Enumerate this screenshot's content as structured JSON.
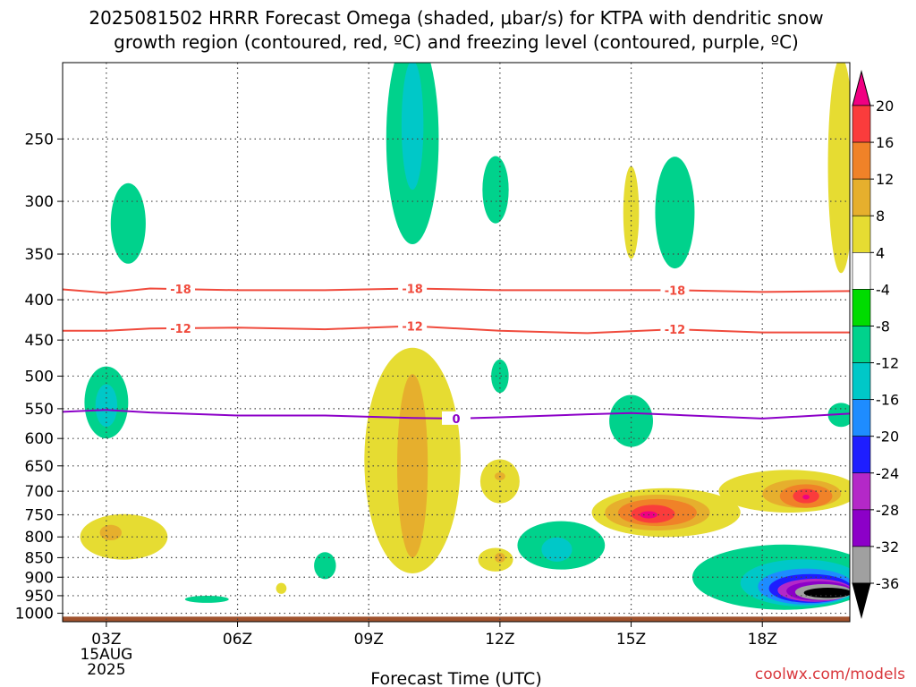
{
  "title_line1": "2025081502 HRRR Forecast Omega (shaded, μbar/s) for KTPA with dendritic snow",
  "title_line2": "growth region (contoured, red, ºC) and freezing level (contoured, purple, ºC)",
  "xlabel": "Forecast Time (UTC)",
  "credit": "coolwx.com/models",
  "chart_data": {
    "type": "heatmap",
    "x_ticks": [
      {
        "hour": 3,
        "label": "03Z",
        "sub1": "15AUG",
        "sub2": "2025"
      },
      {
        "hour": 6,
        "label": "06Z"
      },
      {
        "hour": 9,
        "label": "09Z"
      },
      {
        "hour": 12,
        "label": "12Z"
      },
      {
        "hour": 15,
        "label": "15Z"
      },
      {
        "hour": 18,
        "label": "18Z"
      }
    ],
    "xlim": [
      2,
      20
    ],
    "y_ticks": [
      250,
      300,
      350,
      400,
      450,
      500,
      550,
      600,
      650,
      700,
      750,
      800,
      850,
      900,
      950,
      1000
    ],
    "ylim": [
      200,
      1025
    ],
    "yscale": "log-pressure",
    "ground_color": "#a0522d",
    "colorbar": {
      "colors": [
        "#000000",
        "#a0a0a0",
        "#8c00c8",
        "#b428c8",
        "#1e1eff",
        "#1e8cff",
        "#00c8c8",
        "#00d28c",
        "#00dc00",
        "#ffffff",
        "#e6dc32",
        "#e6af2d",
        "#f08228",
        "#fa3c3c",
        "#f00082"
      ],
      "labels": [
        "-36",
        "-32",
        "-28",
        "-24",
        "-20",
        "-16",
        "-12",
        "-8",
        "-4",
        "4",
        "8",
        "12",
        "16",
        "20"
      ]
    },
    "omega_features": [
      {
        "hour": 3.0,
        "p": 540,
        "dh": 0.5,
        "dp": 60,
        "level": -8
      },
      {
        "hour": 3.0,
        "p": 545,
        "dh": 0.25,
        "dp": 35,
        "level": -12
      },
      {
        "hour": 3.5,
        "p": 320,
        "dh": 0.4,
        "dp": 40,
        "level": -8
      },
      {
        "hour": 3.4,
        "p": 800,
        "dh": 1.0,
        "dp": 55,
        "level": 4
      },
      {
        "hour": 3.1,
        "p": 790,
        "dh": 0.25,
        "dp": 18,
        "level": 8
      },
      {
        "hour": 5.3,
        "p": 960,
        "dh": 0.5,
        "dp": 10,
        "level": -8
      },
      {
        "hour": 7.0,
        "p": 930,
        "dh": 0.12,
        "dp": 15,
        "level": 4
      },
      {
        "hour": 8.0,
        "p": 870,
        "dh": 0.25,
        "dp": 35,
        "level": -8
      },
      {
        "hour": 10.0,
        "p": 250,
        "dh": 0.6,
        "dp": 90,
        "level": -8
      },
      {
        "hour": 10.0,
        "p": 240,
        "dh": 0.25,
        "dp": 50,
        "level": -12
      },
      {
        "hour": 10.0,
        "p": 640,
        "dh": 1.1,
        "dp": 250,
        "level": 4
      },
      {
        "hour": 10.0,
        "p": 650,
        "dh": 0.35,
        "dp": 200,
        "level": 8
      },
      {
        "hour": 11.9,
        "p": 290,
        "dh": 0.3,
        "dp": 30,
        "level": -8
      },
      {
        "hour": 12.0,
        "p": 500,
        "dh": 0.2,
        "dp": 25,
        "level": -8
      },
      {
        "hour": 12.0,
        "p": 680,
        "dh": 0.45,
        "dp": 45,
        "level": 4
      },
      {
        "hour": 12.0,
        "p": 670,
        "dh": 0.12,
        "dp": 8,
        "level": 8
      },
      {
        "hour": 11.9,
        "p": 855,
        "dh": 0.4,
        "dp": 30,
        "level": 4
      },
      {
        "hour": 12.0,
        "p": 850,
        "dh": 0.12,
        "dp": 12,
        "level": 8
      },
      {
        "hour": 13.4,
        "p": 820,
        "dh": 1.0,
        "dp": 60,
        "level": -8
      },
      {
        "hour": 13.3,
        "p": 830,
        "dh": 0.35,
        "dp": 30,
        "level": -12
      },
      {
        "hour": 15.0,
        "p": 570,
        "dh": 0.5,
        "dp": 45,
        "level": -8
      },
      {
        "hour": 15.0,
        "p": 310,
        "dh": 0.18,
        "dp": 45,
        "level": 4
      },
      {
        "hour": 16.0,
        "p": 310,
        "dh": 0.45,
        "dp": 55,
        "level": -8
      },
      {
        "hour": 15.8,
        "p": 745,
        "dh": 1.7,
        "dp": 55,
        "level": 4
      },
      {
        "hour": 15.6,
        "p": 745,
        "dh": 1.2,
        "dp": 40,
        "level": 8
      },
      {
        "hour": 15.6,
        "p": 745,
        "dh": 0.9,
        "dp": 30,
        "level": 12
      },
      {
        "hour": 15.5,
        "p": 748,
        "dh": 0.5,
        "dp": 20,
        "level": 16
      },
      {
        "hour": 15.4,
        "p": 750,
        "dh": 0.2,
        "dp": 8,
        "level": 20
      },
      {
        "hour": 18.6,
        "p": 700,
        "dh": 1.6,
        "dp": 45,
        "level": 4
      },
      {
        "hour": 18.9,
        "p": 705,
        "dh": 0.9,
        "dp": 30,
        "level": 8
      },
      {
        "hour": 19.0,
        "p": 710,
        "dh": 0.6,
        "dp": 25,
        "level": 12
      },
      {
        "hour": 19.0,
        "p": 710,
        "dh": 0.3,
        "dp": 15,
        "level": 16
      },
      {
        "hour": 19.0,
        "p": 712,
        "dh": 0.08,
        "dp": 5,
        "level": 20
      },
      {
        "hour": 19.8,
        "p": 270,
        "dh": 0.3,
        "dp": 100,
        "level": 4
      },
      {
        "hour": 19.8,
        "p": 560,
        "dh": 0.3,
        "dp": 20,
        "level": -8
      },
      {
        "hour": 18.5,
        "p": 900,
        "dh": 2.1,
        "dp": 90,
        "level": -8
      },
      {
        "hour": 18.9,
        "p": 915,
        "dh": 1.4,
        "dp": 65,
        "level": -12
      },
      {
        "hour": 19.0,
        "p": 925,
        "dh": 1.1,
        "dp": 50,
        "level": -16
      },
      {
        "hour": 19.1,
        "p": 930,
        "dh": 0.95,
        "dp": 40,
        "level": -20
      },
      {
        "hour": 19.2,
        "p": 935,
        "dh": 0.85,
        "dp": 32,
        "level": -24
      },
      {
        "hour": 19.3,
        "p": 937,
        "dh": 0.75,
        "dp": 27,
        "level": -28
      },
      {
        "hour": 19.4,
        "p": 940,
        "dh": 0.65,
        "dp": 22,
        "level": -32
      },
      {
        "hour": 19.5,
        "p": 942,
        "dh": 0.55,
        "dp": 14,
        "level": -36
      }
    ],
    "contours": [
      {
        "label": "-18",
        "color": "#f04a3c",
        "value_x": [
          2,
          3,
          4,
          6,
          8,
          10,
          12,
          14,
          16,
          18,
          20
        ],
        "value_p": [
          388,
          392,
          387,
          389,
          389,
          387,
          389,
          389,
          389,
          391,
          390
        ],
        "label_hours": [
          4.7,
          10,
          16
        ]
      },
      {
        "label": "-12",
        "color": "#f04a3c",
        "value_x": [
          2,
          3,
          4,
          6,
          8,
          10,
          12,
          14,
          16,
          18,
          20
        ],
        "value_p": [
          438,
          438,
          435,
          434,
          436,
          432,
          438,
          441,
          436,
          440,
          440
        ],
        "label_hours": [
          4.7,
          10,
          16
        ]
      },
      {
        "label": "0",
        "color": "#8c00c8",
        "value_x": [
          2,
          3,
          4,
          6,
          8,
          10,
          11,
          12,
          14,
          15,
          16,
          18,
          20
        ],
        "value_p": [
          555,
          552,
          556,
          561,
          561,
          565,
          566,
          564,
          559,
          557,
          560,
          566,
          558
        ],
        "label_hours": [
          11
        ]
      }
    ]
  }
}
